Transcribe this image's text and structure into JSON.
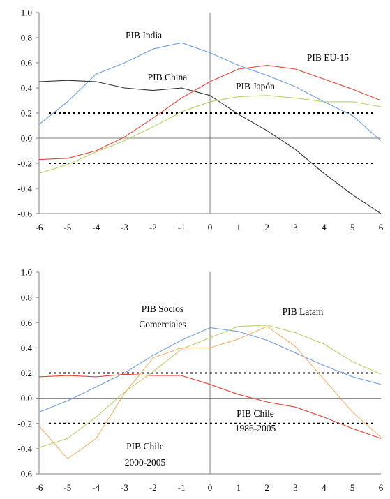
{
  "chart_data": [
    {
      "type": "line",
      "x": [
        -6,
        -5,
        -4,
        -3,
        -2,
        -1,
        0,
        1,
        2,
        3,
        4,
        5,
        6
      ],
      "ylim": [
        -0.6,
        1.0
      ],
      "yticks": [
        "1.0",
        "0.8",
        "0.6",
        "0.4",
        "0.2",
        "0.0",
        "-0.2",
        "-0.4",
        "-0.6"
      ],
      "xticks": [
        "-6",
        "-5",
        "-4",
        "-3",
        "-2",
        "-1",
        "0",
        "1",
        "2",
        "3",
        "4",
        "5",
        "6"
      ],
      "grid": false,
      "reference_lines": [
        0.2,
        -0.2
      ],
      "series": [
        {
          "name": "PIB India",
          "color": "#6d9eeb",
          "values": [
            0.11,
            0.29,
            0.51,
            0.6,
            0.71,
            0.76,
            0.68,
            0.58,
            0.5,
            0.41,
            0.29,
            0.18,
            -0.02
          ]
        },
        {
          "name": "PIB China",
          "color": "#333333",
          "values": [
            0.45,
            0.46,
            0.45,
            0.4,
            0.38,
            0.4,
            0.34,
            0.19,
            0.06,
            -0.09,
            -0.28,
            -0.45,
            -0.6
          ]
        },
        {
          "name": "PIB EU-15",
          "color": "#ea4335",
          "values": [
            -0.17,
            -0.16,
            -0.1,
            0.01,
            0.16,
            0.32,
            0.45,
            0.55,
            0.58,
            0.55,
            0.47,
            0.39,
            0.3
          ]
        },
        {
          "name": "PIB Japón",
          "color": "#b5d36a",
          "values": [
            -0.28,
            -0.21,
            -0.11,
            -0.02,
            0.09,
            0.21,
            0.29,
            0.33,
            0.34,
            0.32,
            0.29,
            0.29,
            0.25
          ]
        }
      ]
    },
    {
      "type": "line",
      "x": [
        -6,
        -5,
        -4,
        -3,
        -2,
        -1,
        0,
        1,
        2,
        3,
        4,
        5,
        6
      ],
      "ylim": [
        -0.6,
        1.0
      ],
      "yticks": [
        "1.0",
        "0.8",
        "0.6",
        "0.4",
        "0.2",
        "0.0",
        "-0.2",
        "-0.4",
        "-0.6"
      ],
      "xticks": [
        "-6",
        "-5",
        "-4",
        "-3",
        "-2",
        "-1",
        "0",
        "1",
        "2",
        "3",
        "4",
        "5",
        "6"
      ],
      "grid": false,
      "reference_lines": [
        0.2,
        -0.2
      ],
      "series": [
        {
          "name": "PIB Socios Comerciales",
          "color": "#6d9eeb",
          "values": [
            -0.11,
            -0.02,
            0.09,
            0.2,
            0.34,
            0.46,
            0.56,
            0.53,
            0.46,
            0.36,
            0.26,
            0.17,
            0.11
          ]
        },
        {
          "name": "PIB Latam",
          "color": "#b5d36a",
          "values": [
            -0.39,
            -0.32,
            -0.15,
            0.05,
            0.21,
            0.39,
            0.48,
            0.57,
            0.58,
            0.52,
            0.43,
            0.29,
            0.19
          ]
        },
        {
          "name": "PIB Chile 1986-2005",
          "color": "#ea4335",
          "values": [
            0.17,
            0.18,
            0.17,
            0.19,
            0.18,
            0.18,
            0.11,
            0.03,
            -0.03,
            -0.07,
            -0.15,
            -0.24,
            -0.32
          ]
        },
        {
          "name": "PIB Chile 2000-2005",
          "color": "#f6b26b",
          "values": [
            -0.22,
            -0.48,
            -0.32,
            0.04,
            0.32,
            0.4,
            0.4,
            0.47,
            0.57,
            0.41,
            0.15,
            -0.11,
            -0.31
          ]
        }
      ]
    }
  ],
  "labels": [
    [
      "PIB India"
    ],
    [
      "PIB China"
    ],
    [
      "PIB EU-15"
    ],
    [
      "PIB Japón"
    ],
    [
      "PIB Socios",
      "Comerciales"
    ],
    [
      "PIB Latam"
    ],
    [
      "PIB Chile",
      "1986-2005"
    ],
    [
      "PIB Chile",
      "2000-2005"
    ]
  ]
}
